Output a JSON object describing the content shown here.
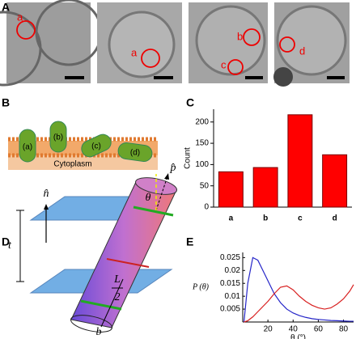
{
  "panel_labels": [
    "A",
    "B",
    "C",
    "D",
    "E"
  ],
  "panel_a": {
    "labels": [
      "a",
      "a",
      "b",
      "c",
      "d"
    ]
  },
  "panel_b": {
    "labels": [
      "(a)",
      "(b)",
      "(c)",
      "(d)"
    ],
    "cytoplasm": "Cytoplasm"
  },
  "panel_d": {
    "normal": "n̂",
    "axis": "p̂",
    "angle": "θ",
    "thickness": "t",
    "length": "L",
    "half": "2",
    "radius": "b"
  },
  "chart_data": [
    {
      "type": "bar",
      "ylabel": "Count",
      "categories": [
        "a",
        "b",
        "c",
        "d"
      ],
      "values": [
        83,
        93,
        217,
        123
      ],
      "color": "#ff0000",
      "ylim": [
        0,
        230
      ],
      "yticks": [
        0,
        50,
        100,
        150,
        200
      ]
    },
    {
      "type": "line",
      "ylabel": "P (θ)",
      "xlabel": "θ (°)",
      "x": [
        1,
        4,
        8,
        12,
        16,
        20,
        25,
        30,
        35,
        40,
        45,
        50,
        55,
        60,
        65,
        70,
        75,
        80,
        85,
        88
      ],
      "series": [
        {
          "color": "#2525c8",
          "values": [
            0,
            0.015,
            0.025,
            0.024,
            0.02,
            0.016,
            0.011,
            0.0075,
            0.005,
            0.0035,
            0.0025,
            0.0018,
            0.0013,
            0.001,
            0.0008,
            0.0006,
            0.0005,
            0.0004,
            0.0003,
            0.0003
          ]
        },
        {
          "color": "#d82020",
          "values": [
            0,
            0.0005,
            0.002,
            0.004,
            0.006,
            0.008,
            0.011,
            0.0135,
            0.014,
            0.0125,
            0.01,
            0.008,
            0.0065,
            0.0055,
            0.005,
            0.0055,
            0.007,
            0.009,
            0.012,
            0.0145
          ]
        }
      ],
      "xlim": [
        0,
        88
      ],
      "xticks": [
        20,
        40,
        60,
        80
      ],
      "ylim": [
        0,
        0.027
      ],
      "yticks": [
        0.005,
        0.01,
        0.015,
        0.02,
        0.025
      ]
    }
  ]
}
